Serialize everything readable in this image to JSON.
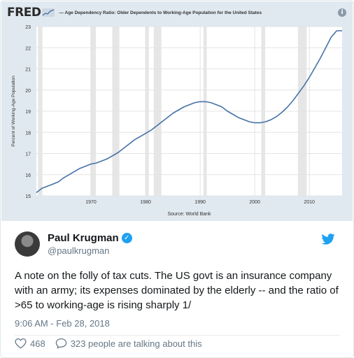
{
  "fred": {
    "logo": "FRED",
    "title": "— Age Dependency Ratio: Older Dependents to Working-Age Population for the United States",
    "source": "Source: World Bank",
    "info_icon": "info-icon"
  },
  "chart_data": {
    "type": "line",
    "title": "Age Dependency Ratio: Older Dependents to Working-Age Population for the United States",
    "xlabel": "",
    "ylabel": "Percent of Working-Age Population",
    "xlim": [
      1960,
      2016
    ],
    "ylim": [
      15,
      23
    ],
    "x_ticks": [
      "1970",
      "1980",
      "1990",
      "2000",
      "2010"
    ],
    "y_ticks": [
      "15",
      "16",
      "17",
      "18",
      "19",
      "20",
      "21",
      "22",
      "23"
    ],
    "grid": true,
    "recessions": [
      [
        1960.3,
        1961.1
      ],
      [
        1969.9,
        1970.9
      ],
      [
        1973.9,
        1975.2
      ],
      [
        1980.0,
        1980.6
      ],
      [
        1981.5,
        1982.9
      ],
      [
        1990.6,
        1991.2
      ],
      [
        2001.2,
        2001.9
      ],
      [
        2007.9,
        2009.5
      ]
    ],
    "series": [
      {
        "color": "#4572a7",
        "x": [
          1960,
          1961,
          1962,
          1963,
          1964,
          1965,
          1966,
          1967,
          1968,
          1969,
          1970,
          1971,
          1972,
          1973,
          1974,
          1975,
          1976,
          1977,
          1978,
          1979,
          1980,
          1981,
          1982,
          1983,
          1984,
          1985,
          1986,
          1987,
          1988,
          1989,
          1990,
          1991,
          1992,
          1993,
          1994,
          1995,
          1996,
          1997,
          1998,
          1999,
          2000,
          2001,
          2002,
          2003,
          2004,
          2005,
          2006,
          2007,
          2008,
          2009,
          2010,
          2011,
          2012,
          2013,
          2014,
          2015,
          2016
        ],
        "y": [
          15.15,
          15.35,
          15.45,
          15.55,
          15.65,
          15.85,
          16.0,
          16.15,
          16.3,
          16.4,
          16.5,
          16.55,
          16.65,
          16.75,
          16.9,
          17.05,
          17.25,
          17.45,
          17.65,
          17.8,
          17.95,
          18.1,
          18.3,
          18.5,
          18.7,
          18.9,
          19.05,
          19.2,
          19.3,
          19.4,
          19.45,
          19.45,
          19.4,
          19.3,
          19.2,
          19.0,
          18.85,
          18.7,
          18.6,
          18.5,
          18.45,
          18.45,
          18.5,
          18.6,
          18.75,
          18.95,
          19.2,
          19.5,
          19.85,
          20.2,
          20.6,
          21.05,
          21.5,
          22.0,
          22.5,
          22.8,
          22.8
        ]
      }
    ]
  },
  "tweet": {
    "display_name": "Paul Krugman",
    "handle": "@paulkrugman",
    "text": "A note on the folly of tax cuts. The US govt is an insurance company with an army; its expenses dominated by the elderly -- and the ratio of >65 to working-age is rising sharply 1/",
    "timestamp": "9:06 AM - Feb 28, 2018",
    "likes": "468",
    "replies_text": "323 people are talking about this"
  },
  "icons": {
    "verified": "verified-badge-icon",
    "bird": "twitter-bird-icon",
    "heart": "heart-icon",
    "reply": "reply-bubble-icon"
  },
  "colors": {
    "fred_bg": "#e1e9f0",
    "plot_bg": "#ffffff",
    "recession": "#e6e6e6",
    "line": "#4572a7",
    "twitter_blue": "#1da1f2"
  }
}
